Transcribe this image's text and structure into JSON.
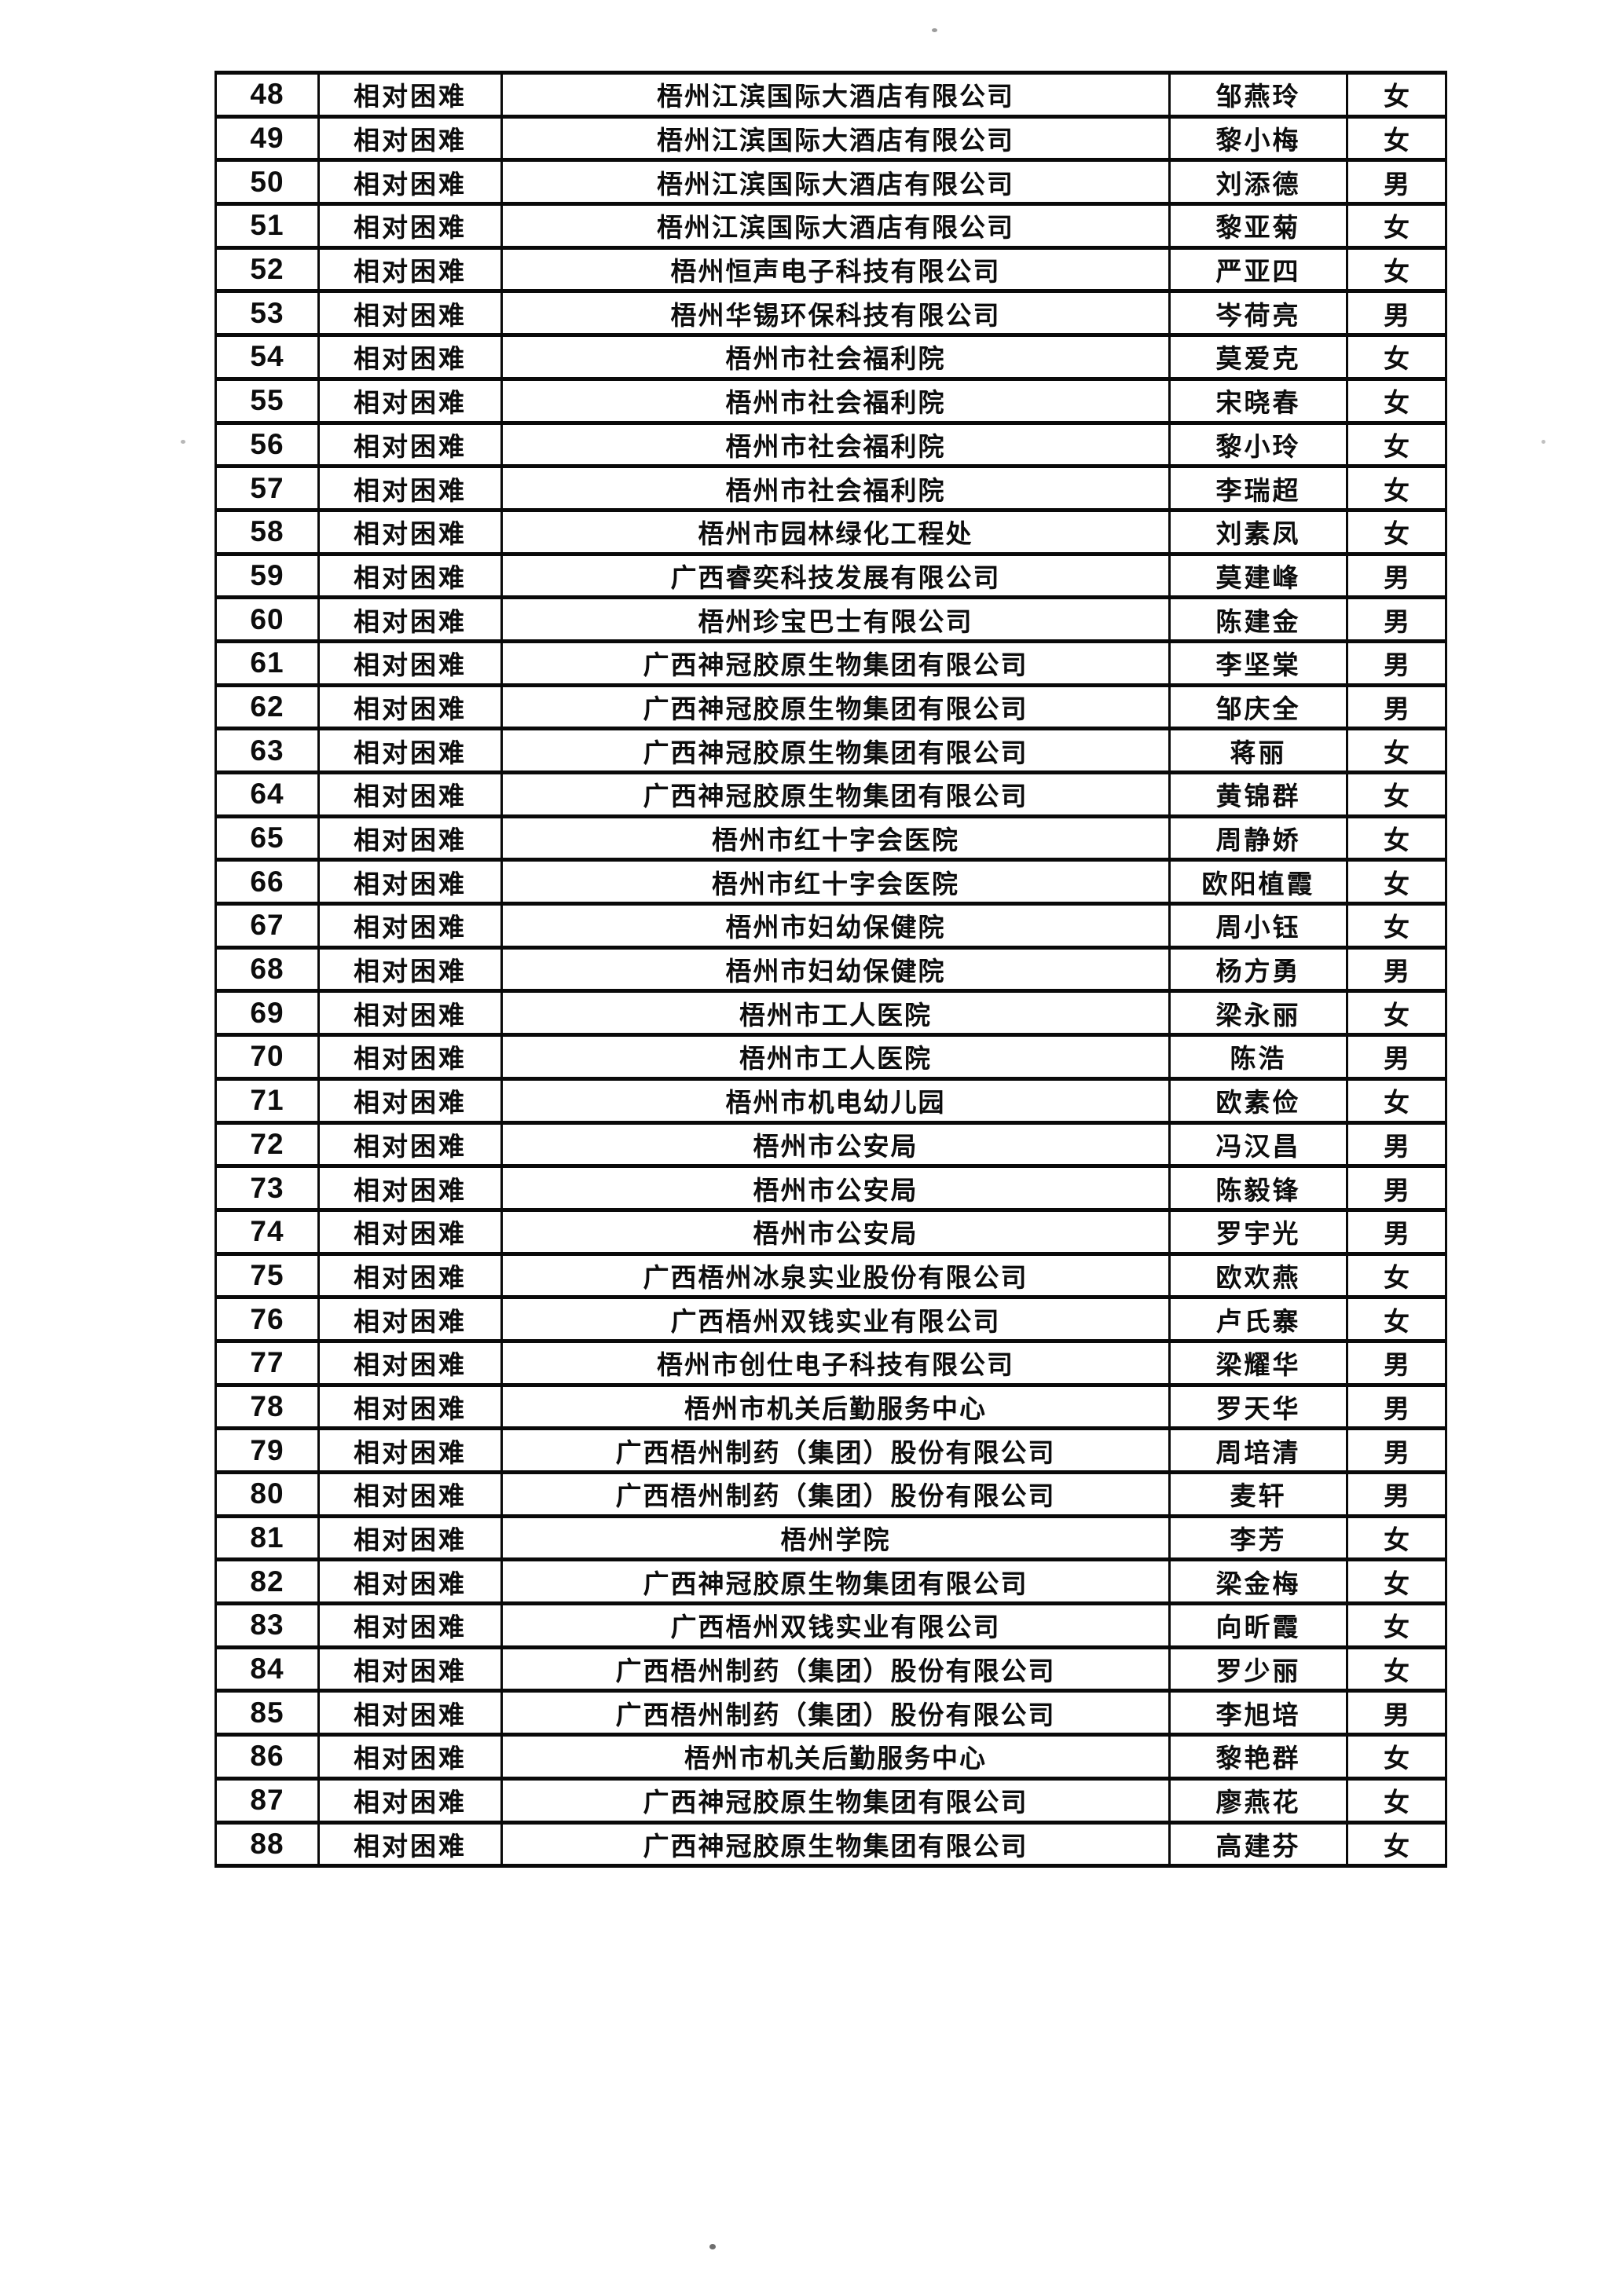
{
  "table": {
    "rows": [
      {
        "no": "48",
        "category": "相对困难",
        "employer": "梧州江滨国际大酒店有限公司",
        "name": "邹燕玲",
        "gender": "女"
      },
      {
        "no": "49",
        "category": "相对困难",
        "employer": "梧州江滨国际大酒店有限公司",
        "name": "黎小梅",
        "gender": "女"
      },
      {
        "no": "50",
        "category": "相对困难",
        "employer": "梧州江滨国际大酒店有限公司",
        "name": "刘添德",
        "gender": "男"
      },
      {
        "no": "51",
        "category": "相对困难",
        "employer": "梧州江滨国际大酒店有限公司",
        "name": "黎亚菊",
        "gender": "女"
      },
      {
        "no": "52",
        "category": "相对困难",
        "employer": "梧州恒声电子科技有限公司",
        "name": "严亚四",
        "gender": "女"
      },
      {
        "no": "53",
        "category": "相对困难",
        "employer": "梧州华锡环保科技有限公司",
        "name": "岑荷亮",
        "gender": "男"
      },
      {
        "no": "54",
        "category": "相对困难",
        "employer": "梧州市社会福利院",
        "name": "莫爱克",
        "gender": "女"
      },
      {
        "no": "55",
        "category": "相对困难",
        "employer": "梧州市社会福利院",
        "name": "宋晓春",
        "gender": "女"
      },
      {
        "no": "56",
        "category": "相对困难",
        "employer": "梧州市社会福利院",
        "name": "黎小玲",
        "gender": "女"
      },
      {
        "no": "57",
        "category": "相对困难",
        "employer": "梧州市社会福利院",
        "name": "李瑞超",
        "gender": "女"
      },
      {
        "no": "58",
        "category": "相对困难",
        "employer": "梧州市园林绿化工程处",
        "name": "刘素凤",
        "gender": "女"
      },
      {
        "no": "59",
        "category": "相对困难",
        "employer": "广西睿奕科技发展有限公司",
        "name": "莫建峰",
        "gender": "男"
      },
      {
        "no": "60",
        "category": "相对困难",
        "employer": "梧州珍宝巴士有限公司",
        "name": "陈建金",
        "gender": "男"
      },
      {
        "no": "61",
        "category": "相对困难",
        "employer": "广西神冠胶原生物集团有限公司",
        "name": "李坚棠",
        "gender": "男"
      },
      {
        "no": "62",
        "category": "相对困难",
        "employer": "广西神冠胶原生物集团有限公司",
        "name": "邹庆全",
        "gender": "男"
      },
      {
        "no": "63",
        "category": "相对困难",
        "employer": "广西神冠胶原生物集团有限公司",
        "name": "蒋丽",
        "gender": "女"
      },
      {
        "no": "64",
        "category": "相对困难",
        "employer": "广西神冠胶原生物集团有限公司",
        "name": "黄锦群",
        "gender": "女"
      },
      {
        "no": "65",
        "category": "相对困难",
        "employer": "梧州市红十字会医院",
        "name": "周静娇",
        "gender": "女"
      },
      {
        "no": "66",
        "category": "相对困难",
        "employer": "梧州市红十字会医院",
        "name": "欧阳植霞",
        "gender": "女"
      },
      {
        "no": "67",
        "category": "相对困难",
        "employer": "梧州市妇幼保健院",
        "name": "周小钰",
        "gender": "女"
      },
      {
        "no": "68",
        "category": "相对困难",
        "employer": "梧州市妇幼保健院",
        "name": "杨方勇",
        "gender": "男"
      },
      {
        "no": "69",
        "category": "相对困难",
        "employer": "梧州市工人医院",
        "name": "梁永丽",
        "gender": "女"
      },
      {
        "no": "70",
        "category": "相对困难",
        "employer": "梧州市工人医院",
        "name": "陈浩",
        "gender": "男"
      },
      {
        "no": "71",
        "category": "相对困难",
        "employer": "梧州市机电幼儿园",
        "name": "欧素俭",
        "gender": "女"
      },
      {
        "no": "72",
        "category": "相对困难",
        "employer": "梧州市公安局",
        "name": "冯汉昌",
        "gender": "男"
      },
      {
        "no": "73",
        "category": "相对困难",
        "employer": "梧州市公安局",
        "name": "陈毅锋",
        "gender": "男"
      },
      {
        "no": "74",
        "category": "相对困难",
        "employer": "梧州市公安局",
        "name": "罗宇光",
        "gender": "男"
      },
      {
        "no": "75",
        "category": "相对困难",
        "employer": "广西梧州冰泉实业股份有限公司",
        "name": "欧欢燕",
        "gender": "女"
      },
      {
        "no": "76",
        "category": "相对困难",
        "employer": "广西梧州双钱实业有限公司",
        "name": "卢氏寨",
        "gender": "女"
      },
      {
        "no": "77",
        "category": "相对困难",
        "employer": "梧州市创仕电子科技有限公司",
        "name": "梁耀华",
        "gender": "男"
      },
      {
        "no": "78",
        "category": "相对困难",
        "employer": "梧州市机关后勤服务中心",
        "name": "罗天华",
        "gender": "男"
      },
      {
        "no": "79",
        "category": "相对困难",
        "employer": "广西梧州制药（集团）股份有限公司",
        "name": "周培清",
        "gender": "男"
      },
      {
        "no": "80",
        "category": "相对困难",
        "employer": "广西梧州制药（集团）股份有限公司",
        "name": "麦轩",
        "gender": "男"
      },
      {
        "no": "81",
        "category": "相对困难",
        "employer": "梧州学院",
        "name": "李芳",
        "gender": "女"
      },
      {
        "no": "82",
        "category": "相对困难",
        "employer": "广西神冠胶原生物集团有限公司",
        "name": "梁金梅",
        "gender": "女"
      },
      {
        "no": "83",
        "category": "相对困难",
        "employer": "广西梧州双钱实业有限公司",
        "name": "向昕霞",
        "gender": "女"
      },
      {
        "no": "84",
        "category": "相对困难",
        "employer": "广西梧州制药（集团）股份有限公司",
        "name": "罗少丽",
        "gender": "女"
      },
      {
        "no": "85",
        "category": "相对困难",
        "employer": "广西梧州制药（集团）股份有限公司",
        "name": "李旭培",
        "gender": "男"
      },
      {
        "no": "86",
        "category": "相对困难",
        "employer": "梧州市机关后勤服务中心",
        "name": "黎艳群",
        "gender": "女"
      },
      {
        "no": "87",
        "category": "相对困难",
        "employer": "广西神冠胶原生物集团有限公司",
        "name": "廖燕花",
        "gender": "女"
      },
      {
        "no": "88",
        "category": "相对困难",
        "employer": "广西神冠胶原生物集团有限公司",
        "name": "高建芬",
        "gender": "女"
      }
    ]
  }
}
